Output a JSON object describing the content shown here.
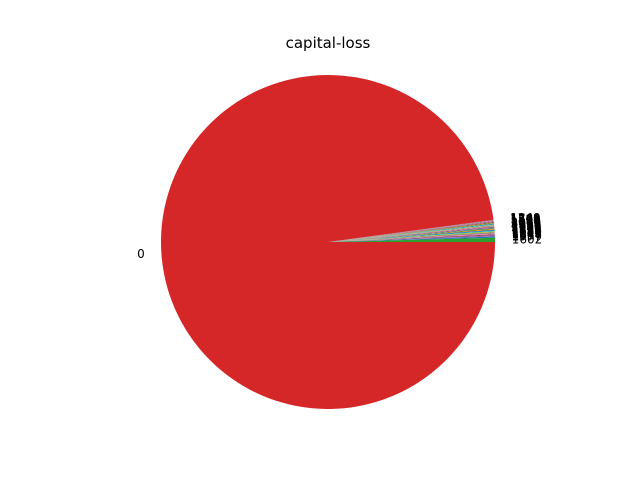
{
  "chart_data": {
    "type": "pie",
    "title": "capital-loss",
    "start_angle_deg": 0,
    "counterclock": true,
    "slices": [
      {
        "label": "1602",
        "value": 0.4,
        "color": "#2ca02c"
      },
      {
        "label": "1977",
        "value": 0.12,
        "color": "#1f77b4"
      },
      {
        "label": "1887",
        "value": 0.11,
        "color": "#9467bd"
      },
      {
        "label": "1848",
        "value": 0.1,
        "color": "#8c564b"
      },
      {
        "label": "1902",
        "value": 0.1,
        "color": "#e377c2"
      },
      {
        "label": "1740",
        "value": 0.09,
        "color": "#7f7f7f"
      },
      {
        "label": "1876",
        "value": 0.09,
        "color": "#bcbd22"
      },
      {
        "label": "1672",
        "value": 0.08,
        "color": "#17becf"
      },
      {
        "label": "1590",
        "value": 0.08,
        "color": "#1f77b4"
      },
      {
        "label": "1741",
        "value": 0.07,
        "color": "#ff7f0e"
      },
      {
        "label": "2001",
        "value": 0.07,
        "color": "#2ca02c"
      },
      {
        "label": "1719",
        "value": 0.07,
        "color": "#9467bd"
      },
      {
        "label": "1485",
        "value": 0.07,
        "color": "#8c564b"
      },
      {
        "label": "1669",
        "value": 0.06,
        "color": "#e377c2"
      },
      {
        "label": "1974",
        "value": 0.06,
        "color": "#7f7f7f"
      },
      {
        "label": "2002",
        "value": 0.06,
        "color": "#bcbd22"
      },
      {
        "label": "2051",
        "value": 0.06,
        "color": "#17becf"
      },
      {
        "label": "1980",
        "value": 0.06,
        "color": "#1f77b4"
      },
      {
        "label": "1564",
        "value": 0.05,
        "color": "#ff7f0e"
      },
      {
        "label": "1408",
        "value": 0.05,
        "color": "#2ca02c"
      },
      {
        "label": "1579",
        "value": 0.05,
        "color": "#d62728"
      },
      {
        "label": "1721",
        "value": 0.05,
        "color": "#9467bd"
      },
      {
        "label": "1504",
        "value": 0.05,
        "color": "#8c564b"
      },
      {
        "label": "1762",
        "value": 0.05,
        "color": "#e377c2"
      },
      {
        "label": "1340",
        "value": 0.05,
        "color": "#7f7f7f"
      },
      {
        "label": "0",
        "value": 96.9,
        "color": "#d62728"
      }
    ]
  }
}
